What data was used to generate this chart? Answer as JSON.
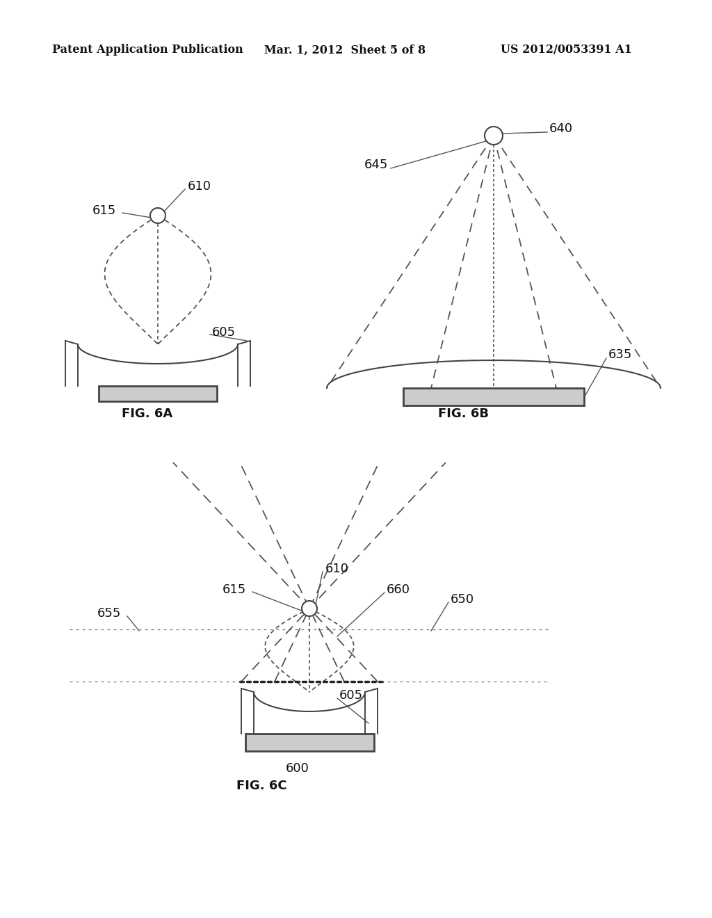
{
  "bg_color": "#ffffff",
  "header_left": "Patent Application Publication",
  "header_mid": "Mar. 1, 2012  Sheet 5 of 8",
  "header_right": "US 2012/0053391 A1",
  "line_color": "#444444",
  "dash_color": "#555555"
}
